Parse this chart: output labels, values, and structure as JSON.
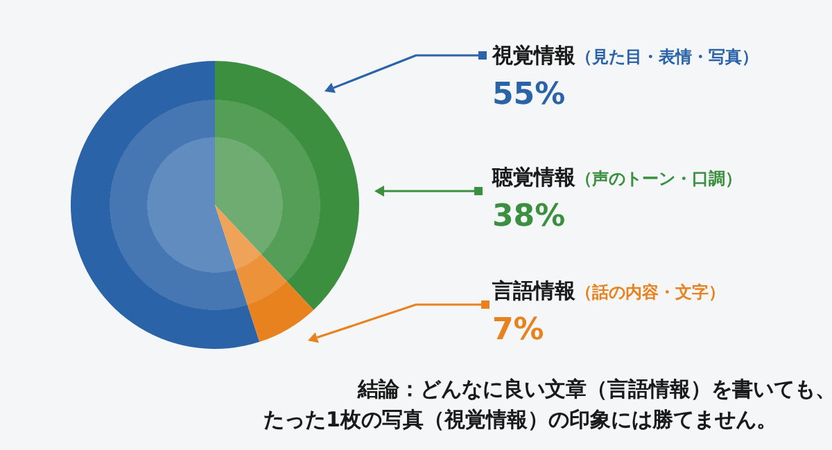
{
  "chart_data": {
    "type": "pie",
    "categories": [
      "視覚情報（見た目・表情・写真）",
      "聴覚情報（声のトーン・口調）",
      "言語情報（話の内容・文字）"
    ],
    "values": [
      55,
      38,
      7
    ],
    "value_labels": [
      "55%",
      "38%",
      "7%"
    ],
    "legend": "right",
    "colors": [
      "#2a63a8",
      "#3b8f3f",
      "#e8821e"
    ],
    "annotations": [
      "結論：どんなに良い文章（言語情報）を書いても、",
      "たった1枚の写真（視覚情報）の印象には勝てません。"
    ]
  }
}
